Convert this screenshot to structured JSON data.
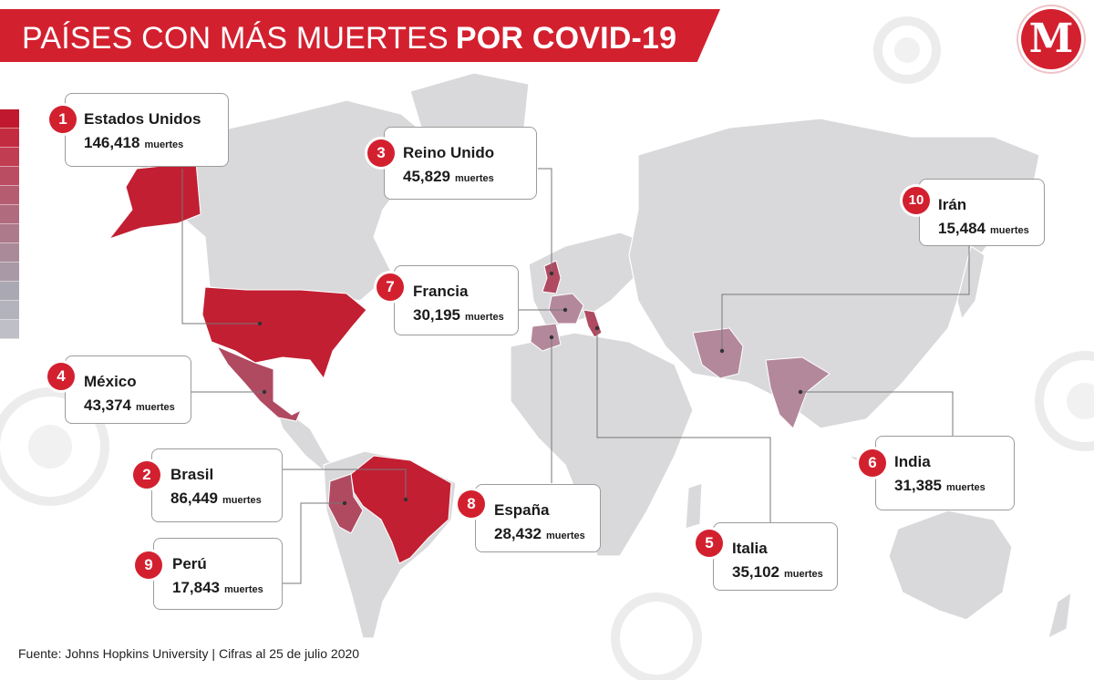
{
  "title": {
    "light": "PAÍSES CON MÁS MUERTES",
    "bold": "POR COVID-19"
  },
  "logo_letter": "M",
  "source": "Fuente: Johns Hopkins University | Cifras al 25 de julio 2020",
  "colors": {
    "brand_red": "#d3202f",
    "land_gray": "#d9d9db",
    "high": "#c21f33",
    "mid": "#b04a61",
    "low": "#b4889b"
  },
  "legend_scale": [
    "#c0182e",
    "#c32c40",
    "#c03d52",
    "#bb4d62",
    "#b65c70",
    "#b16b7e",
    "#ad7a8b",
    "#aa8a99",
    "#a999a6",
    "#aaa8b3",
    "#b3b3bd",
    "#bfbfc7"
  ],
  "countries": [
    {
      "rank": "1",
      "name": "Estados Unidos",
      "deaths": "146,418",
      "unit": "muertes"
    },
    {
      "rank": "2",
      "name": "Brasil",
      "deaths": "86,449",
      "unit": "muertes"
    },
    {
      "rank": "3",
      "name": "Reino Unido",
      "deaths": "45,829",
      "unit": "muertes"
    },
    {
      "rank": "4",
      "name": "México",
      "deaths": "43,374",
      "unit": "muertes"
    },
    {
      "rank": "5",
      "name": "Italia",
      "deaths": "35,102",
      "unit": "muertes"
    },
    {
      "rank": "6",
      "name": "India",
      "deaths": "31,385",
      "unit": "muertes"
    },
    {
      "rank": "7",
      "name": "Francia",
      "deaths": "30,195",
      "unit": "muertes"
    },
    {
      "rank": "8",
      "name": "España",
      "deaths": "28,432",
      "unit": "muertes"
    },
    {
      "rank": "9",
      "name": "Perú",
      "deaths": "17,843",
      "unit": "muertes"
    },
    {
      "rank": "10",
      "name": "Irán",
      "deaths": "15,484",
      "unit": "muertes"
    }
  ]
}
